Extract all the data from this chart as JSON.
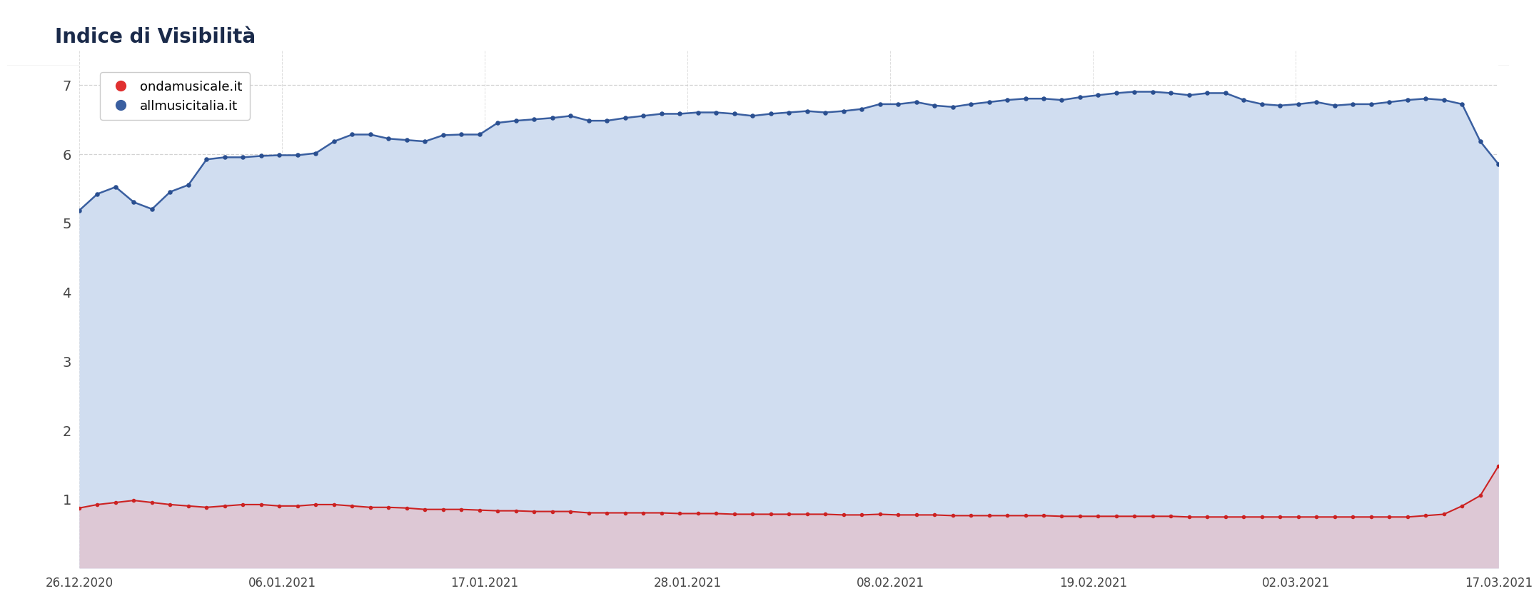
{
  "title": "Indice di Visibilità",
  "header_bg": "#f1f3f8",
  "plot_bg_color": "#ffffff",
  "outer_bg": "#ffffff",
  "x_labels": [
    "26.12.2020",
    "06.01.2021",
    "17.01.2021",
    "28.01.2021",
    "08.02.2021",
    "19.02.2021",
    "02.03.2021",
    "17.03.2021"
  ],
  "ylim": [
    0,
    7.5
  ],
  "yticks": [
    1,
    2,
    3,
    4,
    5,
    6,
    7
  ],
  "legend_labels": [
    "ondamusicale.it",
    "allmusicitalia.it"
  ],
  "legend_colors": [
    "#e03030",
    "#3a5fa0"
  ],
  "blue_data": [
    5.18,
    5.42,
    5.52,
    5.3,
    5.2,
    5.45,
    5.55,
    5.92,
    5.95,
    5.95,
    5.97,
    5.98,
    5.98,
    6.01,
    6.18,
    6.28,
    6.28,
    6.22,
    6.2,
    6.18,
    6.27,
    6.28,
    6.28,
    6.45,
    6.48,
    6.5,
    6.52,
    6.55,
    6.48,
    6.48,
    6.52,
    6.55,
    6.58,
    6.58,
    6.6,
    6.6,
    6.58,
    6.55,
    6.58,
    6.6,
    6.62,
    6.6,
    6.62,
    6.65,
    6.72,
    6.72,
    6.75,
    6.7,
    6.68,
    6.72,
    6.75,
    6.78,
    6.8,
    6.8,
    6.78,
    6.82,
    6.85,
    6.88,
    6.9,
    6.9,
    6.88,
    6.85,
    6.88,
    6.88,
    6.78,
    6.72,
    6.7,
    6.72,
    6.75,
    6.7,
    6.72,
    6.72,
    6.75,
    6.78,
    6.8,
    6.78,
    6.72,
    6.18,
    5.85
  ],
  "red_data": [
    0.87,
    0.92,
    0.95,
    0.98,
    0.95,
    0.92,
    0.9,
    0.88,
    0.9,
    0.92,
    0.92,
    0.9,
    0.9,
    0.92,
    0.92,
    0.9,
    0.88,
    0.88,
    0.87,
    0.85,
    0.85,
    0.85,
    0.84,
    0.83,
    0.83,
    0.82,
    0.82,
    0.82,
    0.8,
    0.8,
    0.8,
    0.8,
    0.8,
    0.79,
    0.79,
    0.79,
    0.78,
    0.78,
    0.78,
    0.78,
    0.78,
    0.78,
    0.77,
    0.77,
    0.78,
    0.77,
    0.77,
    0.77,
    0.76,
    0.76,
    0.76,
    0.76,
    0.76,
    0.76,
    0.75,
    0.75,
    0.75,
    0.75,
    0.75,
    0.75,
    0.75,
    0.74,
    0.74,
    0.74,
    0.74,
    0.74,
    0.74,
    0.74,
    0.74,
    0.74,
    0.74,
    0.74,
    0.74,
    0.74,
    0.76,
    0.78,
    0.9,
    1.05,
    1.48
  ],
  "blue_fill_color": "#d0ddf0",
  "red_fill_color": "#ddc8d5",
  "blue_line_color": "#3a5fa0",
  "red_line_color": "#cc2222",
  "blue_dot_color": "#2a4f90",
  "red_dot_color": "#cc2222",
  "grid_color": "#c8c8c8",
  "title_color": "#1a2a4a",
  "tick_color": "#444444"
}
